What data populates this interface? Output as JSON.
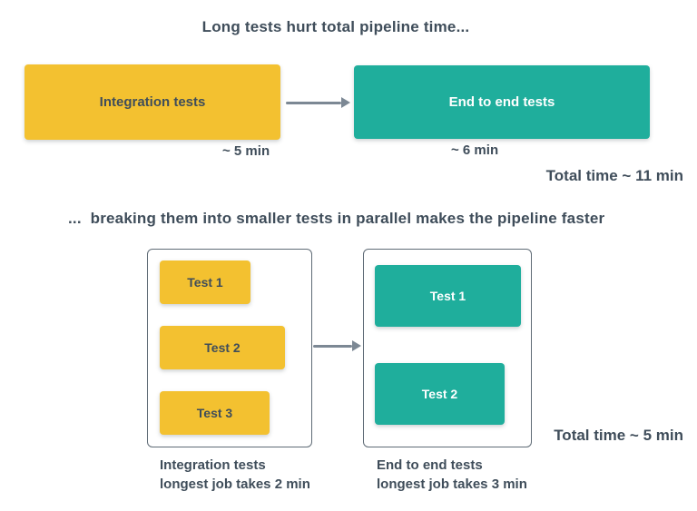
{
  "colors": {
    "yellow": "#F3C130",
    "teal": "#1FAE9C",
    "text_dark": "#3F4D5A",
    "arrow_gray": "#7C8894",
    "group_border": "#5F6B76",
    "background": "#FFFFFF"
  },
  "section1": {
    "title": "Long tests hurt total pipeline time...",
    "integration_box": {
      "label": "Integration tests",
      "time": "~ 5 min"
    },
    "e2e_box": {
      "label": "End to end tests",
      "time": "~ 6 min"
    },
    "total": "Total time ~ 11 min"
  },
  "section2": {
    "title": "...  breaking them into smaller tests in parallel makes the pipeline faster",
    "integration_group": {
      "tests": [
        "Test 1",
        "Test 2",
        "Test 3"
      ],
      "caption_line1": "Integration tests",
      "caption_line2": "longest job takes 2 min"
    },
    "e2e_group": {
      "tests": [
        "Test 1",
        "Test 2"
      ],
      "caption_line1": "End to end tests",
      "caption_line2": "longest job takes 3 min"
    },
    "total": "Total time ~ 5 min"
  }
}
